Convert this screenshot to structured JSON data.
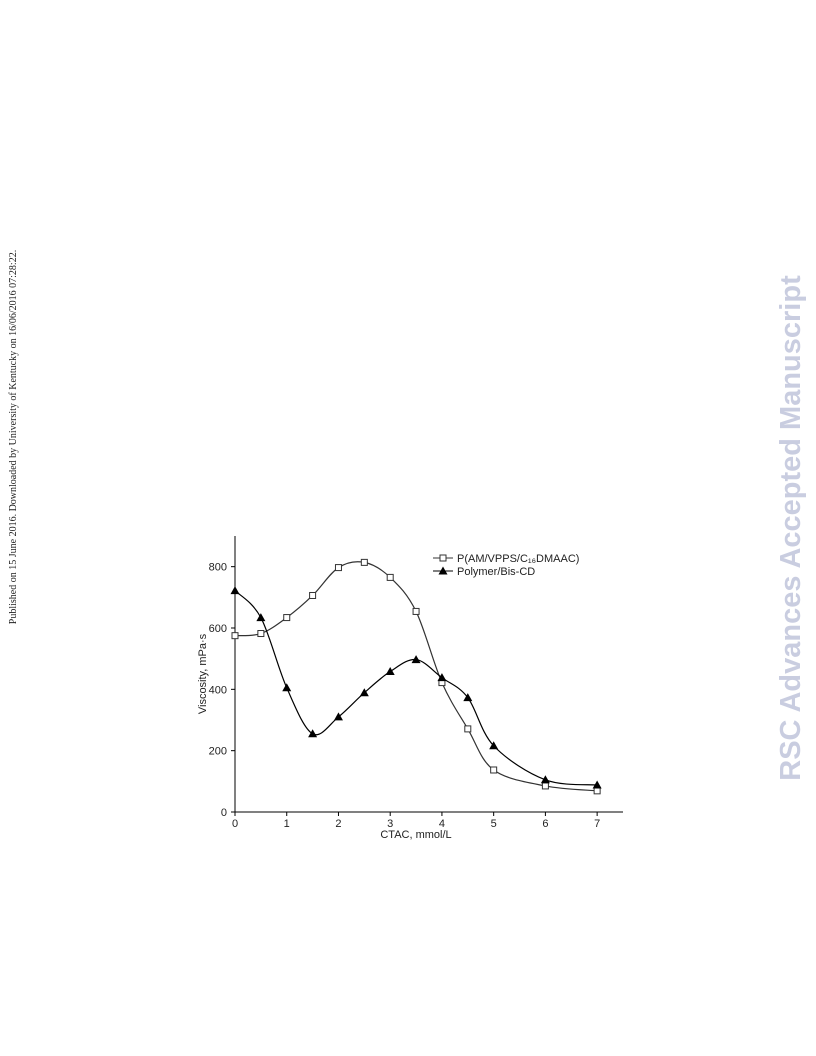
{
  "side_note": "Published on 15 June 2016. Downloaded by University of Kentucky on 16/06/2016 07:28:22.",
  "watermark": "RSC Advances Accepted Manuscript",
  "chart_data": {
    "type": "scatter-curve",
    "x_label": "CTAC, mmol/L",
    "y_label": "Viscosity, mPa·s",
    "x": [
      0,
      0.5,
      1,
      1.5,
      2,
      2.5,
      3,
      3.5,
      4,
      4.5,
      5,
      6,
      7
    ],
    "xlim": [
      0,
      7.5
    ],
    "xticks": [
      0,
      1,
      2,
      3,
      4,
      5,
      6,
      7
    ],
    "ylim": [
      0,
      900
    ],
    "yticks": [
      0,
      200,
      400,
      600,
      800
    ],
    "legend": "upper right",
    "series": [
      {
        "name": "P(AM/VPPS/C₁₆DMAAC)",
        "color": "#333333",
        "marker": "square",
        "values": [
          575,
          582,
          634,
          706,
          797,
          814,
          765,
          654,
          422,
          271,
          137,
          85,
          69
        ]
      },
      {
        "name": "Polymer/Bis-CD",
        "color": "#000000",
        "marker": "triangle",
        "values": [
          722,
          634,
          405,
          255,
          310,
          389,
          458,
          497,
          438,
          373,
          216,
          105,
          88
        ]
      }
    ]
  }
}
